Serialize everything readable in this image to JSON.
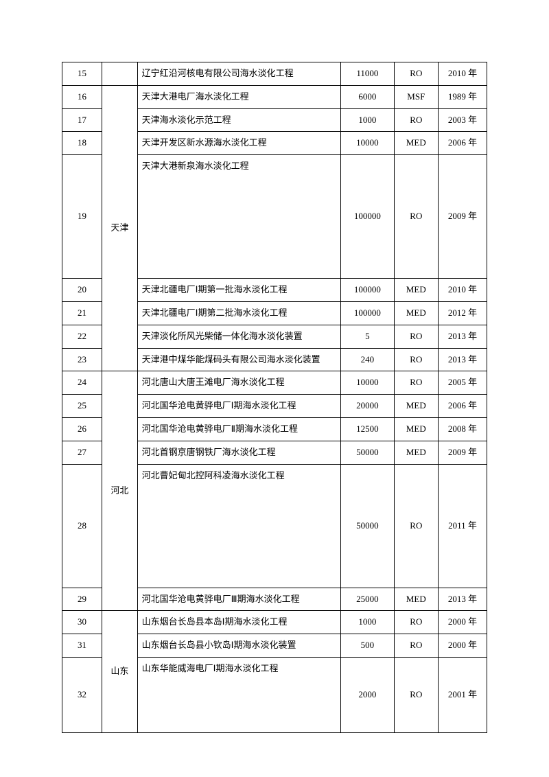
{
  "regions": {
    "r1": "",
    "r2": "天津",
    "r3": "河北",
    "r4": "山东"
  },
  "rows": [
    {
      "num": "15",
      "desc": "辽宁红沿河核电有限公司海水淡化工程",
      "val": "11000",
      "type": "RO",
      "year": "2010 年"
    },
    {
      "num": "16",
      "desc": "天津大港电厂海水淡化工程",
      "val": "6000",
      "type": "MSF",
      "year": "1989 年"
    },
    {
      "num": "17",
      "desc": "天津海水淡化示范工程",
      "val": "1000",
      "type": "RO",
      "year": "2003 年"
    },
    {
      "num": "18",
      "desc": "天津开发区新水源海水淡化工程",
      "val": "10000",
      "type": "MED",
      "year": "2006 年"
    },
    {
      "num": "19",
      "desc": "天津大港新泉海水淡化工程",
      "val": "100000",
      "type": "RO",
      "year": "2009 年"
    },
    {
      "num": "20",
      "desc": "天津北疆电厂Ⅰ期第一批海水淡化工程",
      "val": "100000",
      "type": "MED",
      "year": "2010 年"
    },
    {
      "num": "21",
      "desc": "天津北疆电厂Ⅰ期第二批海水淡化工程",
      "val": "100000",
      "type": "MED",
      "year": "2012 年"
    },
    {
      "num": "22",
      "desc": "天津淡化所风光柴储一体化海水淡化装置",
      "val": "5",
      "type": "RO",
      "year": "2013 年"
    },
    {
      "num": "23",
      "desc": "天津港中煤华能煤码头有限公司海水淡化装置",
      "val": "240",
      "type": "RO",
      "year": "2013 年"
    },
    {
      "num": "24",
      "desc": "河北唐山大唐王滩电厂海水淡化工程",
      "val": "10000",
      "type": "RO",
      "year": "2005 年"
    },
    {
      "num": "25",
      "desc": "河北国华沧电黄骅电厂Ⅰ期海水淡化工程",
      "val": "20000",
      "type": "MED",
      "year": "2006 年"
    },
    {
      "num": "26",
      "desc": "河北国华沧电黄骅电厂Ⅱ期海水淡化工程",
      "val": "12500",
      "type": "MED",
      "year": "2008 年"
    },
    {
      "num": "27",
      "desc": "河北首钢京唐钢铁厂海水淡化工程",
      "val": "50000",
      "type": "MED",
      "year": "2009 年"
    },
    {
      "num": "28",
      "desc": "河北曹妃甸北控阿科凌海水淡化工程",
      "val": "50000",
      "type": "RO",
      "year": "2011 年"
    },
    {
      "num": "29",
      "desc": "河北国华沧电黄骅电厂Ⅲ期海水淡化工程",
      "val": "25000",
      "type": "MED",
      "year": "2013 年"
    },
    {
      "num": "30",
      "desc": "山东烟台长岛县本岛Ⅰ期海水淡化工程",
      "val": "1000",
      "type": "RO",
      "year": "2000 年"
    },
    {
      "num": "31",
      "desc": "山东烟台长岛县小钦岛Ⅰ期海水淡化装置",
      "val": "500",
      "type": "RO",
      "year": "2000 年"
    },
    {
      "num": "32",
      "desc": "山东华能威海电厂Ⅰ期海水淡化工程",
      "val": "2000",
      "type": "RO",
      "year": "2001 年"
    }
  ]
}
